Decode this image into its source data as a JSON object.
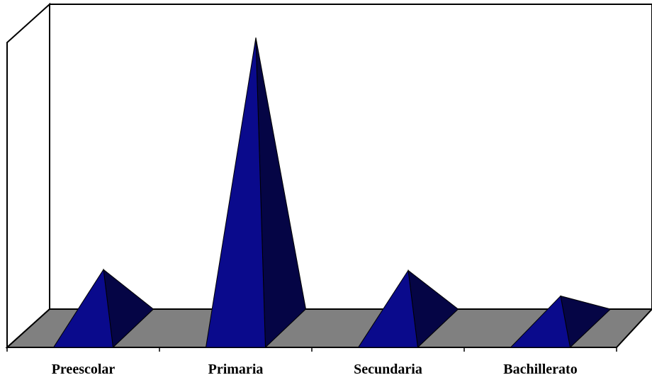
{
  "chart_data": {
    "type": "bar",
    "shape": "3d-pyramid",
    "categories": [
      "Preescolar",
      "Primaria",
      "Secundaria",
      "Bachillerato"
    ],
    "values": [
      20.2,
      100,
      19.9,
      11.1
    ],
    "axis_labels_visible": false,
    "gridlines": false,
    "legend": "none",
    "colors": {
      "pyramid_front": "#0a0a8c",
      "pyramid_side": "#050545",
      "floor": "#808080",
      "outline": "#000000",
      "background": "#ffffff"
    }
  }
}
